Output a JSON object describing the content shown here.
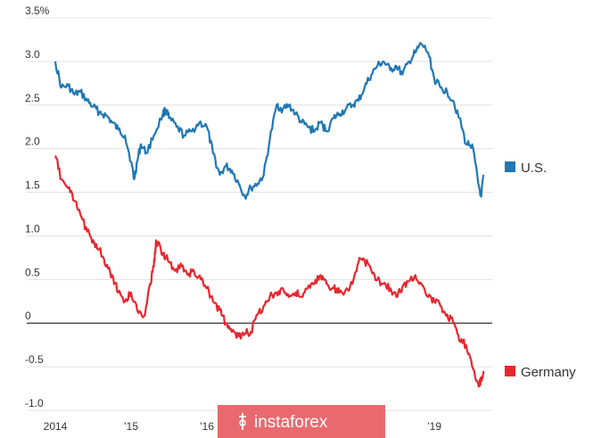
{
  "chart_data": {
    "type": "line",
    "title": "",
    "xlabel": "",
    "ylabel": "",
    "ylim": [
      -1.0,
      3.5
    ],
    "xlim": [
      2014.0,
      2019.75
    ],
    "y_ticks": [
      {
        "value": 3.5,
        "label": "3.5%"
      },
      {
        "value": 3.0,
        "label": "3.0"
      },
      {
        "value": 2.5,
        "label": "2.5"
      },
      {
        "value": 2.0,
        "label": "2.0"
      },
      {
        "value": 1.5,
        "label": "1.5"
      },
      {
        "value": 1.0,
        "label": "1.0"
      },
      {
        "value": 0.5,
        "label": "0.5"
      },
      {
        "value": 0.0,
        "label": "0"
      },
      {
        "value": -0.5,
        "label": "-0.5"
      },
      {
        "value": -1.0,
        "label": "-1.0"
      }
    ],
    "x_ticks": [
      {
        "value": 2014,
        "label": "2014"
      },
      {
        "value": 2015,
        "label": "’15"
      },
      {
        "value": 2016,
        "label": "’16"
      },
      {
        "value": 2019,
        "label": "’19"
      }
    ],
    "grid": "horizontal",
    "zero_line": true,
    "legend_position": "right, beside each series",
    "series": [
      {
        "name": "U.S.",
        "color": "#1f77b4",
        "x": [
          2014.0,
          2014.08,
          2014.17,
          2014.25,
          2014.33,
          2014.42,
          2014.5,
          2014.58,
          2014.67,
          2014.75,
          2014.83,
          2014.92,
          2015.0,
          2015.04,
          2015.08,
          2015.13,
          2015.2,
          2015.3,
          2015.42,
          2015.46,
          2015.5,
          2015.6,
          2015.7,
          2015.8,
          2015.9,
          2016.0,
          2016.08,
          2016.17,
          2016.25,
          2016.33,
          2016.42,
          2016.5,
          2016.58,
          2016.67,
          2016.75,
          2016.83,
          2016.92,
          2017.0,
          2017.08,
          2017.17,
          2017.25,
          2017.33,
          2017.42,
          2017.5,
          2017.58,
          2017.67,
          2017.75,
          2017.83,
          2017.92,
          2018.0,
          2018.08,
          2018.17,
          2018.25,
          2018.33,
          2018.42,
          2018.5,
          2018.58,
          2018.67,
          2018.75,
          2018.83,
          2018.92,
          2019.0,
          2019.08,
          2019.17,
          2019.25,
          2019.33,
          2019.42,
          2019.5,
          2019.58,
          2019.62,
          2019.65
        ],
        "values": [
          3.0,
          2.7,
          2.72,
          2.62,
          2.65,
          2.55,
          2.48,
          2.42,
          2.38,
          2.3,
          2.22,
          2.15,
          1.85,
          1.65,
          1.85,
          2.05,
          1.95,
          2.15,
          2.4,
          2.45,
          2.35,
          2.25,
          2.15,
          2.2,
          2.3,
          2.25,
          1.95,
          1.7,
          1.8,
          1.75,
          1.6,
          1.45,
          1.55,
          1.6,
          1.7,
          2.1,
          2.5,
          2.45,
          2.5,
          2.4,
          2.3,
          2.25,
          2.2,
          2.3,
          2.2,
          2.35,
          2.4,
          2.45,
          2.5,
          2.55,
          2.7,
          2.85,
          2.95,
          3.0,
          2.9,
          2.95,
          2.85,
          3.0,
          3.1,
          3.2,
          3.1,
          2.8,
          2.7,
          2.65,
          2.55,
          2.35,
          2.05,
          2.05,
          1.6,
          1.45,
          1.7
        ]
      },
      {
        "name": "Germany",
        "color": "#e8262d",
        "x": [
          2014.0,
          2014.08,
          2014.17,
          2014.25,
          2014.33,
          2014.42,
          2014.5,
          2014.58,
          2014.67,
          2014.75,
          2014.83,
          2014.92,
          2015.0,
          2015.08,
          2015.17,
          2015.25,
          2015.3,
          2015.33,
          2015.42,
          2015.46,
          2015.5,
          2015.58,
          2015.67,
          2015.75,
          2015.83,
          2015.92,
          2016.0,
          2016.08,
          2016.17,
          2016.25,
          2016.33,
          2016.42,
          2016.5,
          2016.58,
          2016.67,
          2016.75,
          2016.83,
          2016.92,
          2017.0,
          2017.08,
          2017.17,
          2017.25,
          2017.33,
          2017.42,
          2017.5,
          2017.58,
          2017.67,
          2017.75,
          2017.83,
          2017.92,
          2018.0,
          2018.08,
          2018.17,
          2018.25,
          2018.33,
          2018.42,
          2018.5,
          2018.58,
          2018.67,
          2018.75,
          2018.83,
          2018.92,
          2019.0,
          2019.08,
          2019.17,
          2019.25,
          2019.33,
          2019.42,
          2019.5,
          2019.58,
          2019.62,
          2019.65
        ],
        "values": [
          1.92,
          1.65,
          1.55,
          1.4,
          1.25,
          1.05,
          0.95,
          0.85,
          0.65,
          0.55,
          0.35,
          0.25,
          0.35,
          0.15,
          0.08,
          0.45,
          0.65,
          0.95,
          0.8,
          0.75,
          0.7,
          0.6,
          0.65,
          0.55,
          0.6,
          0.5,
          0.4,
          0.25,
          0.15,
          0.0,
          -0.1,
          -0.15,
          -0.12,
          -0.1,
          0.1,
          0.2,
          0.3,
          0.35,
          0.4,
          0.3,
          0.35,
          0.3,
          0.4,
          0.45,
          0.55,
          0.45,
          0.4,
          0.35,
          0.38,
          0.45,
          0.7,
          0.72,
          0.6,
          0.5,
          0.45,
          0.4,
          0.3,
          0.42,
          0.48,
          0.55,
          0.45,
          0.3,
          0.25,
          0.2,
          0.1,
          0.0,
          -0.2,
          -0.25,
          -0.5,
          -0.7,
          -0.65,
          -0.55
        ]
      }
    ]
  },
  "watermark": {
    "text": "instaforex",
    "background_color": "#e86a6e"
  },
  "colors": {
    "us": "#1f77b4",
    "germany": "#e8262d",
    "grid": "#e0e0e0",
    "zero_line": "#333333",
    "tick_text": "#333333"
  }
}
